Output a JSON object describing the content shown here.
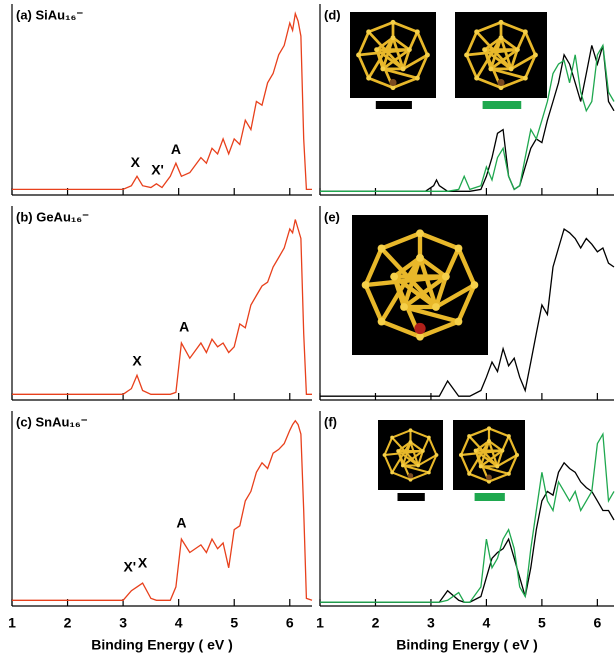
{
  "chart_data": [
    {
      "type": "line",
      "title": "(a) SiAu₁₆⁻",
      "xlim": [
        1,
        6.4
      ],
      "ylim": [
        0,
        1
      ],
      "xticks": [
        1,
        2,
        3,
        4,
        5,
        6
      ],
      "x": [
        1,
        3.0,
        3.15,
        3.25,
        3.35,
        3.5,
        3.6,
        3.7,
        3.85,
        3.95,
        4.05,
        4.2,
        4.4,
        4.5,
        4.6,
        4.7,
        4.8,
        4.9,
        5.0,
        5.1,
        5.2,
        5.3,
        5.4,
        5.5,
        5.6,
        5.7,
        5.8,
        5.9,
        6.0,
        6.05,
        6.1,
        6.15,
        6.2,
        6.25,
        6.3,
        6.4
      ],
      "series": [
        {
          "color": "#e8401c",
          "values": [
            0.03,
            0.03,
            0.05,
            0.1,
            0.05,
            0.04,
            0.06,
            0.04,
            0.1,
            0.17,
            0.1,
            0.12,
            0.2,
            0.17,
            0.25,
            0.22,
            0.3,
            0.22,
            0.3,
            0.27,
            0.4,
            0.35,
            0.5,
            0.48,
            0.6,
            0.65,
            0.75,
            0.8,
            0.92,
            0.88,
            0.97,
            0.93,
            0.85,
            0.3,
            0.03,
            0.03
          ]
        }
      ],
      "annotations": [
        "X",
        "X'",
        "A"
      ]
    },
    {
      "type": "line",
      "title": "(b) GeAu₁₆⁻",
      "xlim": [
        1,
        6.4
      ],
      "ylim": [
        0,
        1
      ],
      "xticks": [
        1,
        2,
        3,
        4,
        5,
        6
      ],
      "x": [
        1,
        3.0,
        3.15,
        3.25,
        3.35,
        3.5,
        3.6,
        3.7,
        3.85,
        3.95,
        4.05,
        4.2,
        4.4,
        4.5,
        4.6,
        4.7,
        4.8,
        4.9,
        5.0,
        5.1,
        5.2,
        5.3,
        5.4,
        5.5,
        5.6,
        5.7,
        5.8,
        5.9,
        6.0,
        6.05,
        6.1,
        6.15,
        6.2,
        6.25,
        6.3,
        6.4
      ],
      "series": [
        {
          "color": "#e8401c",
          "values": [
            0.03,
            0.03,
            0.06,
            0.13,
            0.05,
            0.03,
            0.03,
            0.03,
            0.03,
            0.04,
            0.3,
            0.22,
            0.3,
            0.25,
            0.32,
            0.28,
            0.3,
            0.25,
            0.28,
            0.4,
            0.38,
            0.5,
            0.55,
            0.6,
            0.62,
            0.7,
            0.75,
            0.8,
            0.9,
            0.88,
            0.95,
            0.9,
            0.85,
            0.35,
            0.03,
            0.03
          ]
        }
      ],
      "annotations": [
        "X",
        "A"
      ]
    },
    {
      "type": "line",
      "title": "(c) SnAu₁₆⁻",
      "xlim": [
        1,
        6.4
      ],
      "ylim": [
        0,
        1
      ],
      "xticks": [
        1,
        2,
        3,
        4,
        5,
        6
      ],
      "xlabel": "Binding Energy ( eV )",
      "x": [
        1,
        3.0,
        3.15,
        3.25,
        3.35,
        3.5,
        3.6,
        3.7,
        3.85,
        3.95,
        4.05,
        4.2,
        4.4,
        4.5,
        4.6,
        4.7,
        4.8,
        4.9,
        5.0,
        5.1,
        5.2,
        5.3,
        5.4,
        5.5,
        5.6,
        5.7,
        5.8,
        5.9,
        6.0,
        6.05,
        6.1,
        6.15,
        6.2,
        6.25,
        6.3,
        6.4
      ],
      "series": [
        {
          "color": "#e8401c",
          "values": [
            0.03,
            0.03,
            0.08,
            0.1,
            0.12,
            0.04,
            0.03,
            0.03,
            0.03,
            0.1,
            0.35,
            0.28,
            0.32,
            0.28,
            0.35,
            0.3,
            0.33,
            0.2,
            0.4,
            0.42,
            0.55,
            0.6,
            0.7,
            0.75,
            0.72,
            0.8,
            0.82,
            0.85,
            0.92,
            0.95,
            0.97,
            0.95,
            0.9,
            0.5,
            0.04,
            0.03
          ]
        }
      ],
      "annotations": [
        "X'",
        "X",
        "A"
      ]
    },
    {
      "type": "line",
      "title": "(d)",
      "xlim": [
        1,
        6.3
      ],
      "ylim": [
        0,
        1
      ],
      "xticks": [
        1,
        2,
        3,
        4,
        5,
        6
      ],
      "x": [
        1,
        2.9,
        3.05,
        3.1,
        3.15,
        3.3,
        3.5,
        3.6,
        3.7,
        3.9,
        4.0,
        4.1,
        4.2,
        4.3,
        4.4,
        4.5,
        4.6,
        4.7,
        4.8,
        4.9,
        5.0,
        5.1,
        5.2,
        5.3,
        5.4,
        5.5,
        5.6,
        5.7,
        5.8,
        5.9,
        6.0,
        6.1,
        6.2,
        6.3
      ],
      "series": [
        {
          "color": "#000000",
          "values": [
            0.02,
            0.02,
            0.05,
            0.08,
            0.05,
            0.02,
            0.02,
            0.02,
            0.02,
            0.03,
            0.1,
            0.2,
            0.33,
            0.35,
            0.1,
            0.03,
            0.05,
            0.15,
            0.25,
            0.3,
            0.28,
            0.4,
            0.5,
            0.6,
            0.75,
            0.7,
            0.6,
            0.5,
            0.65,
            0.8,
            0.7,
            0.8,
            0.5,
            0.45
          ]
        },
        {
          "color": "#1fa84f",
          "values": [
            0.02,
            0.02,
            0.02,
            0.02,
            0.02,
            0.02,
            0.03,
            0.1,
            0.03,
            0.05,
            0.15,
            0.08,
            0.2,
            0.25,
            0.1,
            0.03,
            0.05,
            0.2,
            0.35,
            0.3,
            0.4,
            0.5,
            0.65,
            0.7,
            0.72,
            0.6,
            0.75,
            0.55,
            0.45,
            0.5,
            0.75,
            0.8,
            0.55,
            0.5
          ]
        }
      ]
    },
    {
      "type": "line",
      "title": "(e)",
      "xlim": [
        1,
        6.3
      ],
      "ylim": [
        0,
        1
      ],
      "xticks": [
        1,
        2,
        3,
        4,
        5,
        6
      ],
      "x": [
        1,
        2.9,
        3.05,
        3.1,
        3.15,
        3.3,
        3.5,
        3.6,
        3.7,
        3.9,
        4.0,
        4.1,
        4.2,
        4.3,
        4.4,
        4.5,
        4.6,
        4.7,
        4.8,
        4.9,
        5.0,
        5.1,
        5.2,
        5.3,
        5.4,
        5.5,
        5.6,
        5.7,
        5.8,
        5.9,
        6.0,
        6.1,
        6.2,
        6.3
      ],
      "series": [
        {
          "color": "#000000",
          "values": [
            0.02,
            0.02,
            0.02,
            0.02,
            0.02,
            0.1,
            0.02,
            0.02,
            0.02,
            0.05,
            0.12,
            0.2,
            0.15,
            0.27,
            0.18,
            0.22,
            0.12,
            0.05,
            0.2,
            0.35,
            0.5,
            0.45,
            0.7,
            0.8,
            0.9,
            0.88,
            0.85,
            0.8,
            0.85,
            0.82,
            0.78,
            0.8,
            0.72,
            0.7
          ]
        }
      ]
    },
    {
      "type": "line",
      "title": "(f)",
      "xlim": [
        1,
        6.3
      ],
      "ylim": [
        0,
        1
      ],
      "xticks": [
        1,
        2,
        3,
        4,
        5,
        6
      ],
      "xlabel": "Binding Energy ( eV )",
      "x": [
        1,
        2.9,
        3.05,
        3.1,
        3.15,
        3.3,
        3.5,
        3.6,
        3.7,
        3.9,
        4.0,
        4.1,
        4.2,
        4.3,
        4.4,
        4.5,
        4.6,
        4.7,
        4.8,
        4.9,
        5.0,
        5.1,
        5.2,
        5.3,
        5.4,
        5.5,
        5.6,
        5.7,
        5.8,
        5.9,
        6.0,
        6.1,
        6.2,
        6.3
      ],
      "series": [
        {
          "color": "#000000",
          "values": [
            0.02,
            0.02,
            0.02,
            0.02,
            0.02,
            0.08,
            0.03,
            0.02,
            0.02,
            0.05,
            0.15,
            0.25,
            0.28,
            0.3,
            0.35,
            0.25,
            0.15,
            0.05,
            0.2,
            0.4,
            0.55,
            0.6,
            0.58,
            0.7,
            0.75,
            0.72,
            0.7,
            0.65,
            0.62,
            0.6,
            0.55,
            0.5,
            0.5,
            0.45
          ]
        },
        {
          "color": "#1fa84f",
          "values": [
            0.02,
            0.02,
            0.02,
            0.02,
            0.02,
            0.03,
            0.07,
            0.02,
            0.02,
            0.1,
            0.35,
            0.2,
            0.25,
            0.35,
            0.4,
            0.3,
            0.1,
            0.05,
            0.3,
            0.5,
            0.7,
            0.55,
            0.5,
            0.65,
            0.6,
            0.55,
            0.6,
            0.5,
            0.55,
            0.6,
            0.85,
            0.9,
            0.55,
            0.6
          ]
        }
      ]
    }
  ]
}
